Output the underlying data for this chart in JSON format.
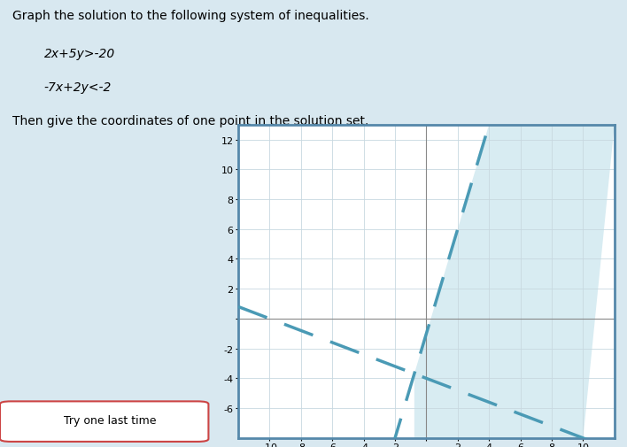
{
  "xlim": [
    -12,
    12
  ],
  "ylim": [
    -8,
    13
  ],
  "xticks": [
    -10,
    -8,
    -6,
    -4,
    -2,
    0,
    2,
    4,
    6,
    8,
    10
  ],
  "yticks": [
    -6,
    -4,
    -2,
    0,
    2,
    4,
    6,
    8,
    10,
    12
  ],
  "line1_slope": -0.4,
  "line1_intercept": -4,
  "line2_slope": 3.5,
  "line2_intercept": -1,
  "shade_color": "#b8dde8",
  "shade_alpha": 0.55,
  "line_color": "#4a9ab5",
  "line_width": 2.5,
  "dash_on": 10,
  "dash_off": 6,
  "grid_color": "#c8d8e0",
  "grid_linewidth": 0.6,
  "bg_color": "#ffffff",
  "fig_bg_color": "#b8ccd8",
  "spine_color": "#5588aa",
  "spine_linewidth": 2.0,
  "tick_labelsize": 8,
  "text_title": "Graph the solution to the following system of inequalities.",
  "text_line1": "2x+5y>-20",
  "text_line2": "-7x+2y<-2",
  "text_solution": "Then give the coordinates of one point in the solution set."
}
